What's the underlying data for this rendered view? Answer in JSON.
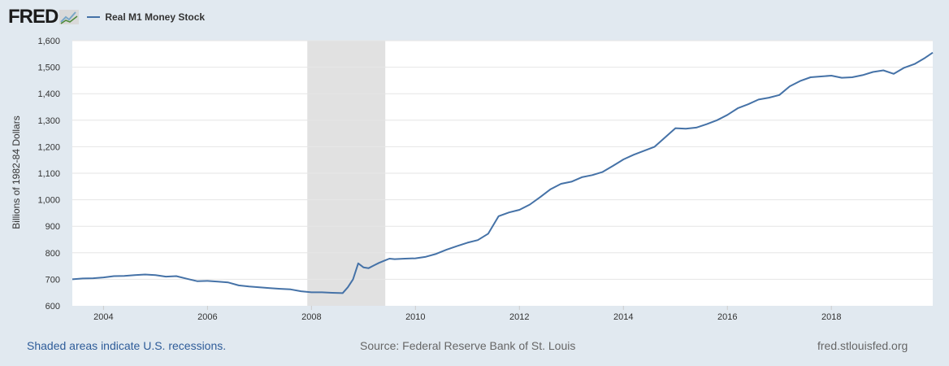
{
  "header": {
    "logo": "FRED",
    "logo_icon": "chart-line-icon",
    "legend_label": "Real M1 Money Stock"
  },
  "footer": {
    "recessions": "Shaded areas indicate U.S. recessions.",
    "source": "Source: Federal Reserve Bank of St. Louis",
    "site": "fred.stlouisfed.org"
  },
  "colors": {
    "background": "#e1e9f0",
    "plot": "#ffffff",
    "line": "#4572a7",
    "recession": "#e1e1e1",
    "grid": "#e6e6e6"
  },
  "chart_data": {
    "type": "line",
    "title": "Real M1 Money Stock",
    "xlabel": "",
    "ylabel": "Billions of 1982-84 Dollars",
    "xlim": [
      2003.4,
      2019.95
    ],
    "ylim": [
      600,
      1600
    ],
    "y_ticks": [
      600,
      700,
      800,
      900,
      1000,
      1100,
      1200,
      1300,
      1400,
      1500,
      1600
    ],
    "y_tick_labels": [
      "600",
      "700",
      "800",
      "900",
      "1,000",
      "1,100",
      "1,200",
      "1,300",
      "1,400",
      "1,500",
      "1,600"
    ],
    "x_ticks": [
      2004,
      2006,
      2008,
      2010,
      2012,
      2014,
      2016,
      2018
    ],
    "x_tick_labels": [
      "2004",
      "2006",
      "2008",
      "2010",
      "2012",
      "2014",
      "2016",
      "2018"
    ],
    "recessions": [
      [
        2007.92,
        2009.42
      ]
    ],
    "series": [
      {
        "name": "Real M1 Money Stock",
        "x": [
          2003.4,
          2003.6,
          2003.8,
          2004.0,
          2004.2,
          2004.4,
          2004.6,
          2004.8,
          2005.0,
          2005.2,
          2005.4,
          2005.6,
          2005.8,
          2006.0,
          2006.2,
          2006.4,
          2006.6,
          2006.8,
          2007.0,
          2007.2,
          2007.4,
          2007.6,
          2007.8,
          2008.0,
          2008.2,
          2008.4,
          2008.6,
          2008.7,
          2008.8,
          2008.9,
          2009.0,
          2009.1,
          2009.2,
          2009.3,
          2009.4,
          2009.5,
          2009.6,
          2009.8,
          2010.0,
          2010.2,
          2010.4,
          2010.6,
          2010.8,
          2011.0,
          2011.2,
          2011.4,
          2011.6,
          2011.8,
          2012.0,
          2012.2,
          2012.4,
          2012.6,
          2012.8,
          2013.0,
          2013.2,
          2013.4,
          2013.6,
          2013.8,
          2014.0,
          2014.2,
          2014.4,
          2014.6,
          2014.8,
          2015.0,
          2015.2,
          2015.4,
          2015.6,
          2015.8,
          2016.0,
          2016.2,
          2016.4,
          2016.6,
          2016.8,
          2017.0,
          2017.2,
          2017.4,
          2017.6,
          2017.8,
          2018.0,
          2018.2,
          2018.4,
          2018.6,
          2018.8,
          2019.0,
          2019.2,
          2019.4,
          2019.6,
          2019.8,
          2019.95
        ],
        "y": [
          700,
          703,
          704,
          707,
          712,
          713,
          716,
          718,
          716,
          710,
          712,
          702,
          693,
          694,
          691,
          688,
          677,
          673,
          670,
          667,
          664,
          662,
          655,
          651,
          651,
          649,
          648,
          670,
          700,
          760,
          745,
          742,
          752,
          762,
          770,
          778,
          776,
          778,
          779,
          785,
          796,
          812,
          825,
          838,
          848,
          872,
          938,
          952,
          962,
          982,
          1010,
          1040,
          1060,
          1068,
          1085,
          1093,
          1105,
          1128,
          1152,
          1170,
          1185,
          1200,
          1235,
          1270,
          1268,
          1272,
          1285,
          1300,
          1320,
          1345,
          1360,
          1378,
          1385,
          1395,
          1428,
          1448,
          1462,
          1465,
          1468,
          1460,
          1462,
          1470,
          1482,
          1488,
          1475,
          1498,
          1512,
          1535,
          1555
        ]
      }
    ]
  }
}
